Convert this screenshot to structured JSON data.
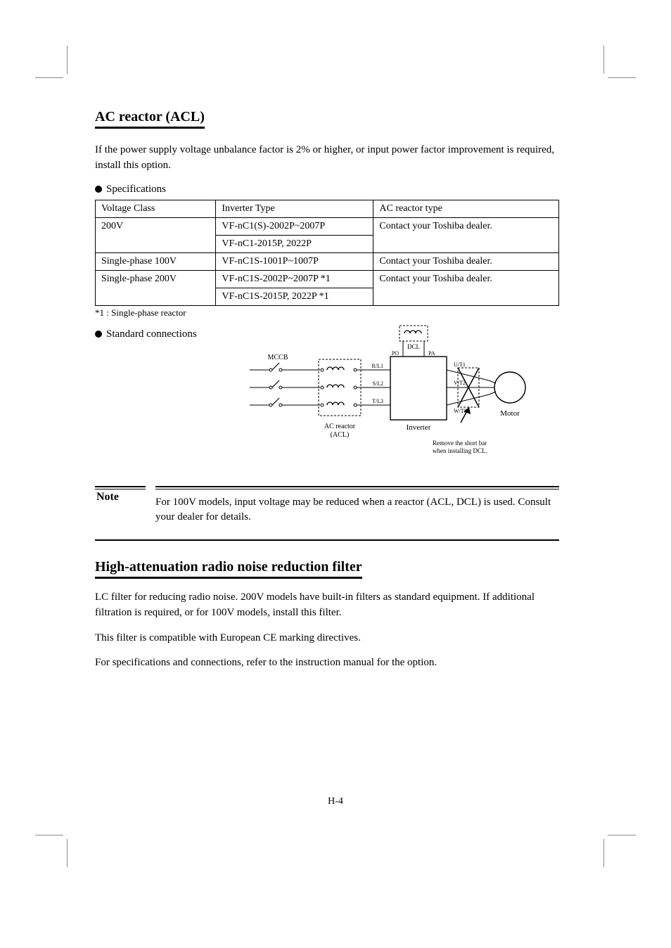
{
  "section1": {
    "heading": "AC reactor (ACL)",
    "intro": "If the power supply voltage unbalance factor is 2% or higher, or input power factor improvement is required, install this option.",
    "table_lead": "Specifications",
    "table": {
      "columns": [
        "Voltage Class",
        "Inverter Type",
        "AC reactor type"
      ],
      "rows": [
        [
          {
            "text": "200V",
            "rowspan": 2
          },
          {
            "text": "VF-nC1(S)-2002P~2007P"
          },
          {
            "text": "Contact your Toshiba dealer.",
            "rowspan": 2
          }
        ],
        [
          {
            "text": "VF-nC1-2015P, 2022P"
          }
        ],
        [
          {
            "text": "Single-phase 100V"
          },
          {
            "text": "VF-nC1S-1001P~1007P"
          },
          {
            "text": "Contact your Toshiba dealer."
          }
        ],
        [
          {
            "text": "Single-phase 200V",
            "rowspan": 2
          },
          {
            "text": "VF-nC1S-2002P~2007P *1"
          },
          {
            "text": "Contact your Toshiba dealer.",
            "rowspan": 2
          }
        ],
        [
          {
            "text": "VF-nC1S-2015P, 2022P *1"
          }
        ]
      ],
      "footnote": "*1 : Single-phase reactor"
    },
    "diagram_lead": "Standard connections",
    "diagram": {
      "labels": {
        "mccb": "MCCB",
        "acl": "AC reactor (ACL)",
        "dcl": "DCL",
        "inverter": "Inverter",
        "motor": "Motor",
        "remove_bar": "Remove the short bar when installing DCL."
      },
      "terminals": {
        "R": "R/L1",
        "S": "S/L2",
        "T": "T/L3",
        "P0": "PO",
        "PA": "PA",
        "U": "U/T1",
        "V": "V/T2",
        "W": "W/T3"
      },
      "colors": {
        "stroke": "#000000",
        "dash": "#000000"
      }
    }
  },
  "note": {
    "label": "Note",
    "body": "For 100V models, input voltage may be reduced when a reactor (ACL, DCL) is used. Consult your dealer for details."
  },
  "section2": {
    "heading": "High-attenuation radio noise reduction filter",
    "p1": "LC filter for reducing radio noise. 200V models have built-in filters as standard equipment. If additional filtration is required, or for 100V models, install this filter.",
    "p2": "This filter is compatible with European CE marking directives.",
    "p3": "For specifications and connections, refer to the instruction manual for the option."
  },
  "pagenum": "H-4"
}
